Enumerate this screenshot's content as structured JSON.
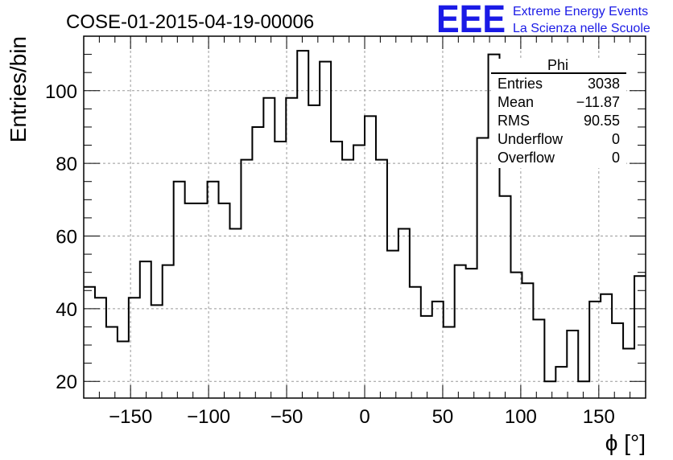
{
  "header": {
    "run_title": "COSE-01-2015-04-19-00006",
    "logo_text": "EEE",
    "logo_line1": "Extreme Energy Events",
    "logo_line2": "La Scienza nelle Scuole",
    "logo_color": "#1a1ae6"
  },
  "stats_box": {
    "title": "Phi",
    "rows": [
      {
        "label": "Entries",
        "value": "3038"
      },
      {
        "label": "Mean",
        "value": "−11.87"
      },
      {
        "label": "RMS",
        "value": "90.55"
      },
      {
        "label": "Underflow",
        "value": "0"
      },
      {
        "label": "Overflow",
        "value": "0"
      }
    ]
  },
  "chart_data": {
    "type": "histogram-step",
    "title": "COSE-01-2015-04-19-00006",
    "xlabel": "ϕ [°]",
    "ylabel": "Entries/bin",
    "xlim": [
      -180,
      180
    ],
    "ylim": [
      15.4,
      115
    ],
    "grid": true,
    "legend": "top-right",
    "bin_width": 7.2,
    "x_ticks": [
      -150,
      -100,
      -50,
      0,
      50,
      100,
      150
    ],
    "x_tick_labels": [
      "−150",
      "−100",
      "−50",
      "0",
      "50",
      "100",
      "150"
    ],
    "y_ticks": [
      20,
      40,
      60,
      80,
      100
    ],
    "y_tick_labels": [
      "20",
      "40",
      "60",
      "80",
      "100"
    ],
    "values": [
      46,
      43,
      35,
      31,
      43,
      53,
      41,
      52,
      75,
      69,
      69,
      75,
      69,
      62,
      81,
      90,
      98,
      86,
      98,
      111,
      96,
      108,
      86,
      81,
      85,
      93,
      81,
      56,
      62,
      46,
      38,
      42,
      35,
      52,
      51,
      87,
      110,
      71,
      50,
      47,
      37,
      20,
      24,
      34,
      20,
      42,
      44,
      36,
      29,
      49
    ]
  }
}
